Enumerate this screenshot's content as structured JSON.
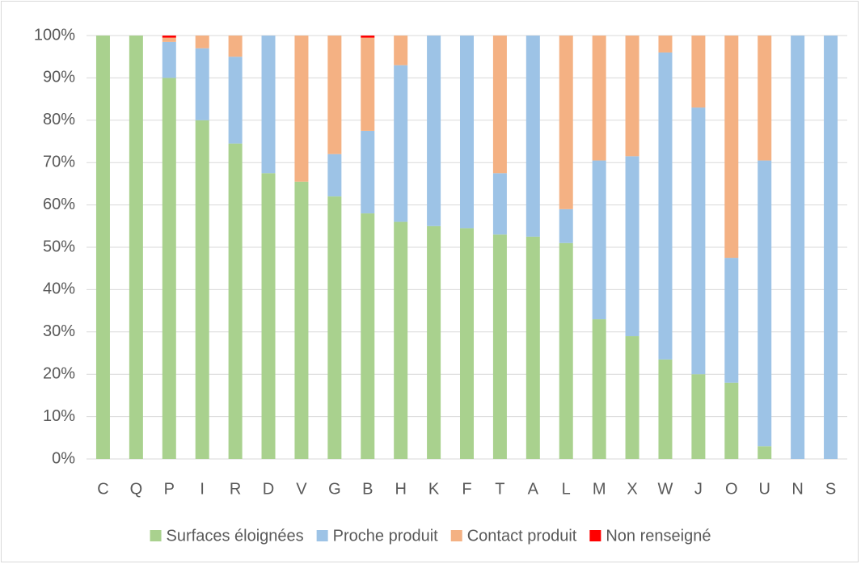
{
  "chart_data": {
    "type": "stacked_bar",
    "categories": [
      "C",
      "Q",
      "P",
      "I",
      "R",
      "D",
      "V",
      "G",
      "B",
      "H",
      "K",
      "F",
      "T",
      "A",
      "L",
      "M",
      "X",
      "W",
      "J",
      "O",
      "U",
      "N",
      "S"
    ],
    "series": [
      {
        "name": "Surfaces éloignées",
        "color": "#a9d18e",
        "values": [
          100,
          100,
          90,
          80,
          74.5,
          67.5,
          65.5,
          62,
          58,
          56,
          55,
          54.5,
          53,
          52.5,
          51,
          33,
          29,
          23.5,
          20,
          18,
          3,
          0,
          0
        ]
      },
      {
        "name": "Proche produit",
        "color": "#9dc3e6",
        "values": [
          0,
          0,
          8.5,
          17,
          20.5,
          32.5,
          0,
          10,
          19.5,
          37,
          45,
          45.5,
          14.5,
          47.5,
          8,
          37.5,
          42.5,
          72.5,
          63,
          29.5,
          67.5,
          100,
          100
        ]
      },
      {
        "name": "Contact produit",
        "color": "#f4b183",
        "values": [
          0,
          0,
          1,
          3,
          5,
          0,
          34.5,
          28,
          22,
          7,
          0,
          0,
          32.5,
          0,
          41,
          29.5,
          28.5,
          4,
          17,
          52.5,
          29.5,
          0,
          0
        ]
      },
      {
        "name": "Non renseigné",
        "color": "#ff0000",
        "values": [
          0,
          0,
          0.5,
          0,
          0,
          0,
          0,
          0,
          0.5,
          0,
          0,
          0,
          0,
          0,
          0,
          0,
          0,
          0,
          0,
          0,
          0,
          0,
          0
        ]
      }
    ],
    "ylim": [
      0,
      100
    ],
    "yticks": [
      {
        "value": 0,
        "label": "0%"
      },
      {
        "value": 10,
        "label": "10%"
      },
      {
        "value": 20,
        "label": "20%"
      },
      {
        "value": 30,
        "label": "30%"
      },
      {
        "value": 40,
        "label": "40%"
      },
      {
        "value": 50,
        "label": "50%"
      },
      {
        "value": 60,
        "label": "60%"
      },
      {
        "value": 70,
        "label": "70%"
      },
      {
        "value": 80,
        "label": "80%"
      },
      {
        "value": 90,
        "label": "90%"
      },
      {
        "value": 100,
        "label": "100%"
      }
    ],
    "grid": true,
    "legend": "bottom"
  }
}
